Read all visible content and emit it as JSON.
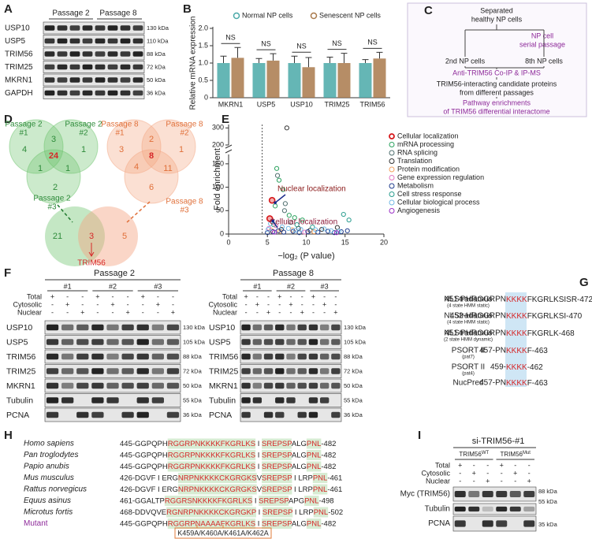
{
  "panel_labels": [
    "A",
    "B",
    "C",
    "D",
    "E",
    "F",
    "G",
    "H",
    "I"
  ],
  "panel_a": {
    "headers": [
      "Passage 2",
      "Passage 8"
    ],
    "rows": [
      "USP10",
      "USP5",
      "TRIM56",
      "TRIM25",
      "MKRN1",
      "GAPDH"
    ],
    "kda": [
      "130 kDa",
      "110 kDa",
      "88 kDa",
      "72 kDa",
      "50 kDa",
      "36 kDa"
    ]
  },
  "chart_data": [
    {
      "type": "bar",
      "y_label": "Relative mRNA expression",
      "categories": [
        "MKRN1",
        "USP5",
        "USP10",
        "TRIM25",
        "TRIM56"
      ],
      "series": [
        {
          "name": "Normal NP cells",
          "color": "#4aa9a8",
          "values": [
            1.0,
            1.0,
            1.0,
            1.0,
            1.0
          ],
          "errors": [
            0.2,
            0.13,
            0.2,
            0.17,
            0.1
          ]
        },
        {
          "name": "Senescent NP cells",
          "color": "#a9794b",
          "values": [
            1.15,
            1.07,
            0.88,
            1.0,
            1.13
          ],
          "errors": [
            0.3,
            0.2,
            0.28,
            0.28,
            0.18
          ]
        }
      ],
      "annotations": [
        "NS",
        "NS",
        "NS",
        "NS",
        "NS"
      ],
      "ylim": [
        0,
        2
      ],
      "yticks": [
        0,
        0.5,
        {
          "value": 1,
          "label": "1.0"
        },
        1.5,
        {
          "value": 2,
          "label": "2.0"
        }
      ]
    },
    {
      "type": "scatter",
      "x_label": "−log₂ (P value)",
      "y_label": "Fold enrichment",
      "xlim": [
        0,
        20
      ],
      "xticks": [
        0,
        5,
        10,
        15,
        20
      ],
      "ylim": [
        0,
        320
      ],
      "yticks": [
        0,
        50,
        100,
        150,
        200,
        300
      ],
      "y_break": [
        170,
        200
      ],
      "reference_x": 4.32,
      "annotations": [
        "Nuclear localization",
        "Cellular localization"
      ],
      "series": [
        {
          "name": "Cellular localization",
          "color": "#d7191c",
          "x": [
            5.6,
            5.3
          ],
          "values": [
            72,
            33
          ]
        },
        {
          "name": "mRNA processing",
          "color": "#2ca25f",
          "x": [
            6.2,
            6.5,
            7.0,
            6.0,
            7.8,
            8.5,
            9.5,
            5.8
          ],
          "values": [
            140,
            115,
            95,
            60,
            40,
            35,
            30,
            20
          ]
        },
        {
          "name": "RNA splicing",
          "color": "#4f6f6f",
          "x": [
            6.3,
            7.3,
            7.2,
            8.0
          ],
          "values": [
            125,
            65,
            50,
            25
          ]
        },
        {
          "name": "Translation",
          "color": "#333333",
          "x": [
            7.5,
            6.8,
            9.0,
            10.5,
            12,
            14
          ],
          "values": [
            300,
            10,
            12,
            8,
            10,
            14
          ]
        },
        {
          "name": "Protein modification",
          "color": "#f4a261",
          "x": [
            5.5,
            6.6,
            8.2,
            11
          ],
          "values": [
            8,
            6,
            9,
            5
          ]
        },
        {
          "name": "Gene expression regulation",
          "color": "#e377c2",
          "x": [
            5.2,
            6.1,
            9.8
          ],
          "values": [
            12,
            18,
            4
          ]
        },
        {
          "name": "Metabolism",
          "color": "#1f3b8c",
          "x": [
            5.0,
            5.7,
            6.4,
            7.1,
            8.3,
            9.1,
            10.2,
            11.5,
            12.8,
            13.6,
            14.5,
            15.3
          ],
          "values": [
            3,
            5,
            7,
            4,
            6,
            3,
            5,
            4,
            6,
            3,
            5,
            7
          ]
        },
        {
          "name": "Cell stress response",
          "color": "#2a9d8f",
          "x": [
            8.8,
            14.8,
            15.5,
            10.8
          ],
          "values": [
            20,
            42,
            30,
            15
          ]
        },
        {
          "name": "Cellular biological process",
          "color": "#74b9e6",
          "x": [
            5.1,
            5.4,
            6.9,
            7.7,
            8.6,
            9.3,
            11.2,
            12.3,
            13.2,
            14.2
          ],
          "values": [
            10,
            22,
            15,
            12,
            8,
            10,
            9,
            11,
            7,
            6
          ]
        },
        {
          "name": "Angiogenesis",
          "color": "#9b30c6",
          "x": [
            5.9,
            13.9
          ],
          "values": [
            4,
            3
          ]
        }
      ]
    }
  ],
  "panel_c": {
    "lines": [
      "Separated",
      "healthy NP cells",
      "NP cell",
      "serial passage",
      "2nd NP cells",
      "8th NP cells",
      "Anti-TRIM56 Co-IP & IP-MS",
      "TRIM56-interacting candidate proteins",
      "from different passages",
      "Pathway enrichments",
      "of TRIM56 differential interactome"
    ]
  },
  "panel_d": {
    "left": {
      "circles": [
        [
          "Passage 2",
          "#1"
        ],
        [
          "Passage 2",
          "#2"
        ],
        [
          "Passage 2",
          "#3"
        ]
      ],
      "counts": [
        4,
        3,
        1,
        24,
        1,
        1,
        2
      ]
    },
    "right": {
      "circles": [
        [
          "Passage 8",
          "#1"
        ],
        [
          "Passage 8",
          "#2"
        ],
        [
          "Passage 8",
          "#3"
        ]
      ],
      "counts": [
        3,
        2,
        1,
        4,
        8,
        11,
        6
      ]
    },
    "bottom": {
      "counts": [
        21,
        3,
        5
      ],
      "label": "TRIM56"
    }
  },
  "panel_f": [
    {
      "title": "Passage 2",
      "groups": [
        "#1",
        "#2",
        "#3"
      ],
      "fractions": [
        {
          "label": "Total",
          "marks": [
            "+",
            "-",
            "-",
            "+",
            "-",
            "-",
            "+",
            "-",
            "-"
          ]
        },
        {
          "label": "Cytosolic",
          "marks": [
            "-",
            "+",
            "-",
            "-",
            "+",
            "-",
            "-",
            "+",
            "-"
          ]
        },
        {
          "label": "Nuclear",
          "marks": [
            "-",
            "-",
            "+",
            "-",
            "-",
            "+",
            "-",
            "-",
            "+"
          ]
        }
      ],
      "rows": [
        "USP10",
        "USP5",
        "TRIM56",
        "TRIM25",
        "MKRN1",
        "Tubulin",
        "PCNA"
      ],
      "kda": [
        "130 kDa",
        "105 kDa",
        "88 kDa",
        "72 kDa",
        "50 kDa",
        "55 kDa",
        "36 kDa"
      ]
    },
    {
      "title": "Passage 8",
      "groups": [
        "#1",
        "#2",
        "#3"
      ],
      "fractions": [
        {
          "label": "Total",
          "marks": [
            "+",
            "-",
            "-",
            "+",
            "-",
            "-",
            "+",
            "-",
            "-"
          ]
        },
        {
          "label": "Cytosolic",
          "marks": [
            "-",
            "+",
            "-",
            "-",
            "+",
            "-",
            "-",
            "+",
            "-"
          ]
        },
        {
          "label": "Nuclear",
          "marks": [
            "-",
            "-",
            "+",
            "-",
            "-",
            "+",
            "-",
            "-",
            "+"
          ]
        }
      ],
      "rows": [
        "USP10",
        "USP5",
        "TRIM56",
        "TRIM25",
        "MKRN1",
        "Tubulin",
        "PCNA"
      ],
      "kda": [
        "130 kDa",
        "105 kDa",
        "88 kDa",
        "72 kDa",
        "50 kDa",
        "55 kDa",
        "36 kDa"
      ]
    }
  ],
  "panel_g": {
    "entries": [
      {
        "tool": "NLStradamus",
        "note": "(4 state HMM static)",
        "seq": [
          "451-PHRGGRPN",
          "KKKK",
          "FKGRLKSISR-472"
        ]
      },
      {
        "tool": "NLStradamus",
        "note": "(4 state HMM static)",
        "seq": [
          "452-HRGGRPN",
          "KKKK",
          "FKGRLKSI-470"
        ]
      },
      {
        "tool": "NLStradamus",
        "note": "(2 state HMM dynamic)",
        "seq": [
          "451-PHRGGRPN",
          "KKKK",
          "FKGRLK-468"
        ]
      },
      {
        "tool": "PSORT II",
        "note": "(pat7)",
        "seq": [
          "457-PN",
          "KKKK",
          "F-463"
        ]
      },
      {
        "tool": "PSORT II",
        "note": "(pat4)",
        "seq": [
          "459-",
          "KKKK",
          "-462"
        ]
      },
      {
        "tool": "NucPred",
        "seq": [
          "457-PN",
          "KKKK",
          "F-463"
        ]
      }
    ]
  },
  "panel_h": {
    "species": [
      {
        "name": "Homo sapiens",
        "seq": [
          "445-GGPQPH",
          "RGGRPNKKKKFKGRLKS",
          " I ",
          "SREPSP",
          "ALG",
          "PNL",
          "-482"
        ]
      },
      {
        "name": "Pan troglodytes",
        "seq": [
          "445-GGPQPH",
          "RGGRPNKKKKFKGRLKS",
          " I ",
          "SREPSP",
          "ALG",
          "PNL",
          "-482"
        ]
      },
      {
        "name": "Papio anubis",
        "seq": [
          "445-GGPQPH",
          "RGGRPNKKKKFKGRLKS",
          " I ",
          "SREPSP",
          "ALG",
          "PNL",
          "-482"
        ]
      },
      {
        "name": "Mus musculus",
        "seq": [
          "426-DGVF I ERG",
          "NRPNKKKKCKGRGKS",
          "V",
          "SREPSP",
          " I LRP",
          "PNL",
          "-461"
        ]
      },
      {
        "name": "Rattus norvegicus",
        "seq": [
          "426-DGVF I ERG",
          "NRPNKKKKCKGRGKS",
          "V",
          "SREPSP",
          " I LRP",
          "PNL",
          "-461"
        ]
      },
      {
        "name": "Equus asinus",
        "seq": [
          "461-GGALTP",
          "RGGRSNKKKKFKGRLKS",
          " I ",
          "SREPSP",
          "APG",
          "PNL",
          "-498"
        ]
      },
      {
        "name": "Microtus fortis",
        "seq": [
          "468-DDVQVE",
          "RGNRPNKKKKCKGRGKP",
          " I ",
          "SREPSP",
          " I LRP",
          "PNL",
          "-502"
        ]
      },
      {
        "name": "Mutant",
        "seq": [
          "445-GGPQPH",
          "RGGRPNAAAAFKGRLKS",
          " I ",
          "SREPSP",
          "ALG",
          "PNL",
          "-482"
        ]
      }
    ],
    "mutation": "K459A/K460A/K461A/K462A"
  },
  "panel_i": {
    "title": "si-TRIM56-#1",
    "groups": [
      {
        "name": "TRIM56",
        "sup": "WT"
      },
      {
        "name": "TRIM56",
        "sup": "Mut"
      }
    ],
    "fractions": [
      {
        "label": "Total",
        "marks": [
          "+",
          "-",
          "-",
          "+",
          "-",
          "-"
        ]
      },
      {
        "label": "Cytosolic",
        "marks": [
          "-",
          "+",
          "-",
          "-",
          "+",
          "-"
        ]
      },
      {
        "label": "Nuclear",
        "marks": [
          "-",
          "-",
          "+",
          "-",
          "-",
          "+"
        ]
      }
    ],
    "rows": [
      "Myc (TRIM56)",
      "Tubulin",
      "PCNA"
    ],
    "kda": [
      "88 kDa",
      "55 kDa",
      "35 kDa"
    ]
  }
}
